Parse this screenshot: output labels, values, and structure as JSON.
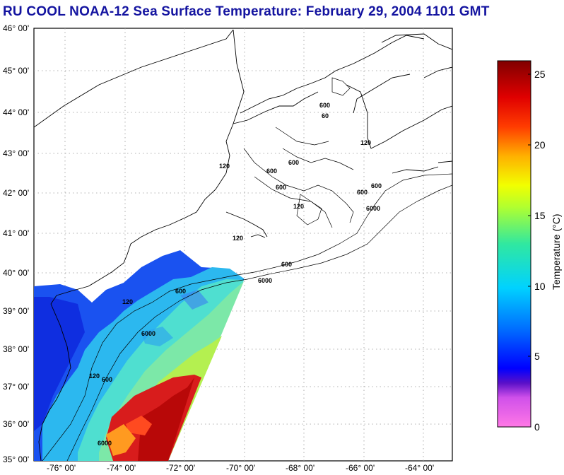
{
  "title": "RU COOL  NOAA-12  Sea Surface Temperature:  February 29, 2004 1101 GMT",
  "map": {
    "lat_labels": [
      "46° 00'",
      "45° 00'",
      "44° 00'",
      "43° 00'",
      "42° 00'",
      "41° 00'",
      "40° 00'",
      "39° 00'",
      "38° 00'",
      "37° 00'",
      "36° 00'",
      "35° 00'"
    ],
    "lon_labels": [
      "-76° 00'",
      "-74° 00'",
      "-72° 00'",
      "-70° 00'",
      "-68° 00'",
      "-66° 00'",
      "-64° 00'"
    ],
    "lat_range": [
      35,
      46
    ],
    "lon_range": [
      -77,
      -63.3
    ],
    "contour_labels": {
      "c600": "600",
      "c6000": "6000",
      "c120": "120",
      "c60": "60"
    }
  },
  "colorbar": {
    "label": "Temperature (°C)",
    "ticks": [
      "0",
      "5",
      "10",
      "15",
      "20",
      "25"
    ],
    "range": [
      0,
      26
    ]
  },
  "colors": {
    "title": "#1414a0",
    "warm": "#d81c1c",
    "cold": "#1a3cf0"
  }
}
